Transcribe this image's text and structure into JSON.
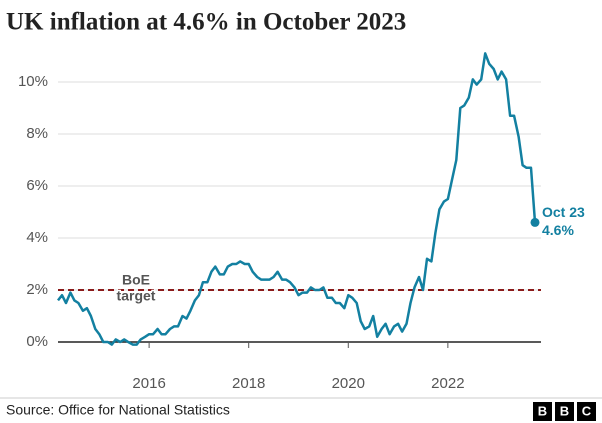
{
  "chart_data": {
    "type": "line",
    "title": "UK inflation at 4.6% in October 2023",
    "source": "Source: Office for National Statistics",
    "logo": [
      "B",
      "B",
      "C"
    ],
    "x": [
      2014.17,
      2014.25,
      2014.33,
      2014.42,
      2014.5,
      2014.58,
      2014.67,
      2014.75,
      2014.83,
      2014.92,
      2015,
      2015.08,
      2015.17,
      2015.25,
      2015.33,
      2015.42,
      2015.5,
      2015.58,
      2015.67,
      2015.75,
      2015.83,
      2015.92,
      2016,
      2016.08,
      2016.17,
      2016.25,
      2016.33,
      2016.42,
      2016.5,
      2016.58,
      2016.67,
      2016.75,
      2016.83,
      2016.92,
      2017,
      2017.08,
      2017.17,
      2017.25,
      2017.33,
      2017.42,
      2017.5,
      2017.58,
      2017.67,
      2017.75,
      2017.83,
      2017.92,
      2018,
      2018.08,
      2018.17,
      2018.25,
      2018.33,
      2018.42,
      2018.5,
      2018.58,
      2018.67,
      2018.75,
      2018.83,
      2018.92,
      2019,
      2019.08,
      2019.17,
      2019.25,
      2019.33,
      2019.42,
      2019.5,
      2019.58,
      2019.67,
      2019.75,
      2019.83,
      2019.92,
      2020,
      2020.08,
      2020.17,
      2020.25,
      2020.33,
      2020.42,
      2020.5,
      2020.58,
      2020.67,
      2020.75,
      2020.83,
      2020.92,
      2021,
      2021.08,
      2021.17,
      2021.25,
      2021.33,
      2021.42,
      2021.5,
      2021.58,
      2021.67,
      2021.75,
      2021.83,
      2021.92,
      2022,
      2022.08,
      2022.17,
      2022.25,
      2022.33,
      2022.42,
      2022.5,
      2022.58,
      2022.67,
      2022.75,
      2022.83,
      2022.92,
      2023,
      2023.08,
      2023.17,
      2023.25,
      2023.33,
      2023.42,
      2023.5,
      2023.58,
      2023.67,
      2023.75
    ],
    "series": [
      {
        "color": "#1380a1",
        "values": [
          1.6,
          1.8,
          1.5,
          1.9,
          1.6,
          1.5,
          1.2,
          1.3,
          1.0,
          0.5,
          0.3,
          0.0,
          0.0,
          -0.1,
          0.1,
          0.0,
          0.1,
          0.0,
          -0.1,
          -0.1,
          0.1,
          0.2,
          0.3,
          0.3,
          0.5,
          0.3,
          0.3,
          0.5,
          0.6,
          0.6,
          1.0,
          0.9,
          1.2,
          1.6,
          1.8,
          2.3,
          2.3,
          2.7,
          2.9,
          2.6,
          2.6,
          2.9,
          3.0,
          3.0,
          3.1,
          3.0,
          3.0,
          2.7,
          2.5,
          2.4,
          2.4,
          2.4,
          2.5,
          2.7,
          2.4,
          2.4,
          2.3,
          2.1,
          1.8,
          1.9,
          1.9,
          2.1,
          2.0,
          2.0,
          2.1,
          1.7,
          1.7,
          1.5,
          1.5,
          1.3,
          1.8,
          1.7,
          1.5,
          0.8,
          0.5,
          0.6,
          1.0,
          0.2,
          0.5,
          0.7,
          0.3,
          0.6,
          0.7,
          0.4,
          0.7,
          1.5,
          2.1,
          2.5,
          2.0,
          3.2,
          3.1,
          4.2,
          5.1,
          5.4,
          5.5,
          6.2,
          7.0,
          9.0,
          9.1,
          9.4,
          10.1,
          9.9,
          10.1,
          11.1,
          10.7,
          10.5,
          10.1,
          10.4,
          10.1,
          8.7,
          8.7,
          7.9,
          6.8,
          6.7,
          6.7,
          4.6
        ]
      }
    ],
    "xlim": [
      2014.17,
      2023.75
    ],
    "ylim": [
      0,
      11
    ],
    "xticks": [
      2016,
      2018,
      2020,
      2022
    ],
    "yticks": [
      {
        "value": 0,
        "label": "0%"
      },
      {
        "value": 2,
        "label": "2%"
      },
      {
        "value": 4,
        "label": "4%"
      },
      {
        "value": 6,
        "label": "6%"
      },
      {
        "value": 8,
        "label": "8%"
      },
      {
        "value": 10,
        "label": "10%"
      }
    ],
    "grid": true,
    "target": {
      "value": 2,
      "label": [
        "BoE",
        "target"
      ],
      "color": "#8b1a1a"
    },
    "end_label": {
      "date": "Oct 23",
      "value_label": "4.6%"
    }
  }
}
